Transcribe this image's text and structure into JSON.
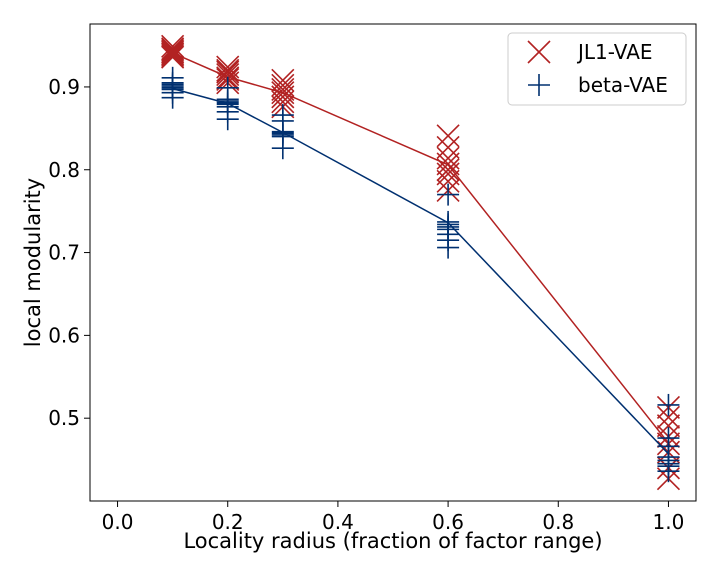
{
  "chart_data": {
    "type": "scatter",
    "title": "",
    "xlabel": "Locality radius (fraction of factor range)",
    "ylabel": "local modularity",
    "xlim": [
      -0.05,
      1.05
    ],
    "ylim": [
      0.4,
      0.976
    ],
    "xticks": [
      0.0,
      0.2,
      0.4,
      0.6,
      0.8,
      1.0
    ],
    "xtick_labels": [
      "0.0",
      "0.2",
      "0.4",
      "0.6",
      "0.8",
      "1.0"
    ],
    "yticks": [
      0.5,
      0.6,
      0.7,
      0.8,
      0.9
    ],
    "ytick_labels": [
      "0.5",
      "0.6",
      "0.7",
      "0.8",
      "0.9"
    ],
    "grid": false,
    "legend": "top-right",
    "series": [
      {
        "name": "JL1-VAE",
        "color": "#b22222",
        "marker": "x",
        "x": [
          0.1,
          0.2,
          0.3,
          0.6,
          1.0
        ],
        "mean": [
          0.941,
          0.912,
          0.893,
          0.806,
          0.47
        ],
        "points": [
          [
            0.949,
            0.946,
            0.944,
            0.942,
            0.94,
            0.938,
            0.936
          ],
          [
            0.924,
            0.92,
            0.918,
            0.915,
            0.911,
            0.909,
            0.905
          ],
          [
            0.908,
            0.902,
            0.897,
            0.893,
            0.888,
            0.882,
            0.876
          ],
          [
            0.841,
            0.827,
            0.814,
            0.807,
            0.8,
            0.795,
            0.786,
            0.775
          ],
          [
            0.513,
            0.501,
            0.491,
            0.478,
            0.469,
            0.459,
            0.44,
            0.427
          ]
        ]
      },
      {
        "name": "beta-VAE",
        "color": "#003070",
        "marker": "+",
        "x": [
          0.1,
          0.2,
          0.3,
          0.6,
          1.0
        ],
        "mean": [
          0.898,
          0.88,
          0.845,
          0.736,
          0.457
        ],
        "points": [
          [
            0.911,
            0.905,
            0.903,
            0.901,
            0.899,
            0.897,
            0.893,
            0.887
          ],
          [
            0.899,
            0.885,
            0.883,
            0.881,
            0.879,
            0.876,
            0.87,
            0.861
          ],
          [
            0.866,
            0.859,
            0.846,
            0.844,
            0.842,
            0.84,
            0.826
          ],
          [
            0.77,
            0.737,
            0.734,
            0.731,
            0.728,
            0.722,
            0.715,
            0.706
          ],
          [
            0.516,
            0.476,
            0.466,
            0.453,
            0.449,
            0.445,
            0.442,
            0.436
          ]
        ]
      }
    ]
  }
}
